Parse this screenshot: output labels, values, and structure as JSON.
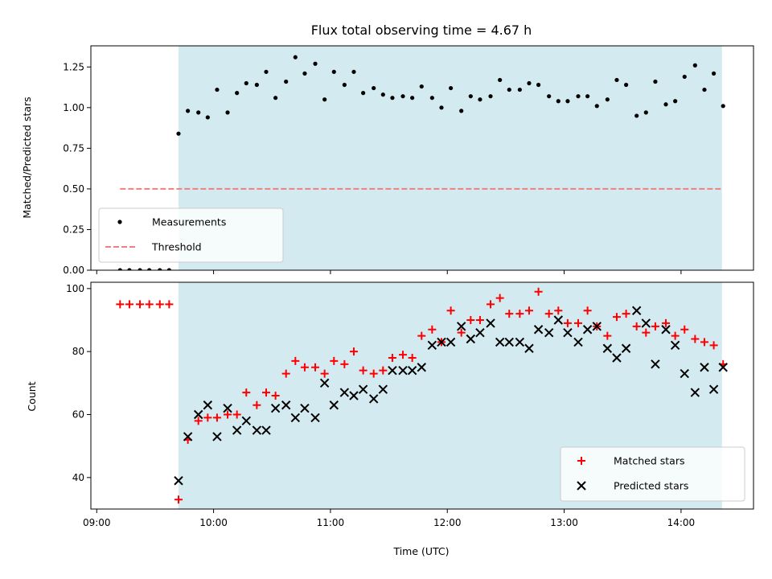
{
  "chart_data": [
    {
      "type": "scatter",
      "title": "Flux total observing time = 4.67 h",
      "ylabel": "Matched/Predicted stars",
      "ylim": [
        0,
        1.38
      ],
      "yticks": [
        "0.00",
        "0.25",
        "0.50",
        "0.75",
        "1.00",
        "1.25"
      ],
      "shaded_region": {
        "x_start": 9.7,
        "x_end": 14.35,
        "color": "#d3eaf0"
      },
      "legend": {
        "placement": "lower-left",
        "entries": [
          "Measurements",
          "Threshold"
        ]
      },
      "series": [
        {
          "name": "Measurements",
          "marker": "dot",
          "color": "#000000",
          "points": [
            [
              9.2,
              0
            ],
            [
              9.28,
              0
            ],
            [
              9.37,
              0
            ],
            [
              9.45,
              0
            ],
            [
              9.54,
              0
            ],
            [
              9.62,
              0
            ],
            [
              9.7,
              0.84
            ],
            [
              9.78,
              0.98
            ],
            [
              9.87,
              0.97
            ],
            [
              9.95,
              0.94
            ],
            [
              10.03,
              1.11
            ],
            [
              10.12,
              0.97
            ],
            [
              10.2,
              1.09
            ],
            [
              10.28,
              1.15
            ],
            [
              10.37,
              1.14
            ],
            [
              10.45,
              1.22
            ],
            [
              10.53,
              1.06
            ],
            [
              10.62,
              1.16
            ],
            [
              10.7,
              1.31
            ],
            [
              10.78,
              1.21
            ],
            [
              10.87,
              1.27
            ],
            [
              10.95,
              1.05
            ],
            [
              11.03,
              1.22
            ],
            [
              11.12,
              1.14
            ],
            [
              11.2,
              1.22
            ],
            [
              11.28,
              1.09
            ],
            [
              11.37,
              1.12
            ],
            [
              11.45,
              1.08
            ],
            [
              11.53,
              1.06
            ],
            [
              11.62,
              1.07
            ],
            [
              11.7,
              1.06
            ],
            [
              11.78,
              1.13
            ],
            [
              11.87,
              1.06
            ],
            [
              11.95,
              1.0
            ],
            [
              12.03,
              1.12
            ],
            [
              12.12,
              0.98
            ],
            [
              12.2,
              1.07
            ],
            [
              12.28,
              1.05
            ],
            [
              12.37,
              1.07
            ],
            [
              12.45,
              1.17
            ],
            [
              12.53,
              1.11
            ],
            [
              12.62,
              1.11
            ],
            [
              12.7,
              1.15
            ],
            [
              12.78,
              1.14
            ],
            [
              12.87,
              1.07
            ],
            [
              12.95,
              1.04
            ],
            [
              13.03,
              1.04
            ],
            [
              13.12,
              1.07
            ],
            [
              13.2,
              1.07
            ],
            [
              13.28,
              1.01
            ],
            [
              13.37,
              1.05
            ],
            [
              13.45,
              1.17
            ],
            [
              13.53,
              1.14
            ],
            [
              13.62,
              0.95
            ],
            [
              13.7,
              0.97
            ],
            [
              13.78,
              1.16
            ],
            [
              13.87,
              1.02
            ],
            [
              13.95,
              1.04
            ],
            [
              14.03,
              1.19
            ],
            [
              14.12,
              1.26
            ],
            [
              14.2,
              1.11
            ],
            [
              14.28,
              1.21
            ],
            [
              14.36,
              1.01
            ]
          ]
        },
        {
          "name": "Threshold",
          "marker": "dashed-line",
          "color": "#f08080",
          "points": [
            [
              9.2,
              0.5
            ],
            [
              14.36,
              0.5
            ]
          ]
        }
      ]
    },
    {
      "type": "scatter",
      "xlabel": "Time (UTC)",
      "ylabel": "Count",
      "xlim": [
        8.95,
        14.62
      ],
      "ylim": [
        30,
        102
      ],
      "xticks": [
        "09:00",
        "10:00",
        "11:00",
        "12:00",
        "13:00",
        "14:00"
      ],
      "yticks": [
        "40",
        "60",
        "80",
        "100"
      ],
      "shaded_region": {
        "x_start": 9.7,
        "x_end": 14.35,
        "color": "#d3eaf0"
      },
      "legend": {
        "placement": "lower-right",
        "entries": [
          "Matched stars",
          "Predicted stars"
        ]
      },
      "series": [
        {
          "name": "Matched stars",
          "marker": "plus",
          "color": "#ff0000",
          "points": [
            [
              9.2,
              95
            ],
            [
              9.28,
              95
            ],
            [
              9.37,
              95
            ],
            [
              9.45,
              95
            ],
            [
              9.54,
              95
            ],
            [
              9.62,
              95
            ],
            [
              9.7,
              33
            ],
            [
              9.78,
              52
            ],
            [
              9.87,
              58
            ],
            [
              9.95,
              59
            ],
            [
              10.03,
              59
            ],
            [
              10.12,
              60
            ],
            [
              10.2,
              60
            ],
            [
              10.28,
              67
            ],
            [
              10.37,
              63
            ],
            [
              10.45,
              67
            ],
            [
              10.53,
              66
            ],
            [
              10.62,
              73
            ],
            [
              10.7,
              77
            ],
            [
              10.78,
              75
            ],
            [
              10.87,
              75
            ],
            [
              10.95,
              73
            ],
            [
              11.03,
              77
            ],
            [
              11.12,
              76
            ],
            [
              11.2,
              80
            ],
            [
              11.28,
              74
            ],
            [
              11.37,
              73
            ],
            [
              11.45,
              74
            ],
            [
              11.53,
              78
            ],
            [
              11.62,
              79
            ],
            [
              11.7,
              78
            ],
            [
              11.78,
              85
            ],
            [
              11.87,
              87
            ],
            [
              11.95,
              83
            ],
            [
              12.03,
              93
            ],
            [
              12.12,
              86
            ],
            [
              12.2,
              90
            ],
            [
              12.28,
              90
            ],
            [
              12.37,
              95
            ],
            [
              12.45,
              97
            ],
            [
              12.53,
              92
            ],
            [
              12.62,
              92
            ],
            [
              12.7,
              93
            ],
            [
              12.78,
              99
            ],
            [
              12.87,
              92
            ],
            [
              12.95,
              93
            ],
            [
              13.03,
              89
            ],
            [
              13.12,
              89
            ],
            [
              13.2,
              93
            ],
            [
              13.28,
              88
            ],
            [
              13.37,
              85
            ],
            [
              13.45,
              91
            ],
            [
              13.53,
              92
            ],
            [
              13.62,
              88
            ],
            [
              13.7,
              86
            ],
            [
              13.78,
              88
            ],
            [
              13.87,
              89
            ],
            [
              13.95,
              85
            ],
            [
              14.03,
              87
            ],
            [
              14.12,
              84
            ],
            [
              14.2,
              83
            ],
            [
              14.28,
              82
            ],
            [
              14.36,
              76
            ]
          ]
        },
        {
          "name": "Predicted stars",
          "marker": "x",
          "color": "#000000",
          "points": [
            [
              9.7,
              39
            ],
            [
              9.78,
              53
            ],
            [
              9.87,
              60
            ],
            [
              9.95,
              63
            ],
            [
              10.03,
              53
            ],
            [
              10.12,
              62
            ],
            [
              10.2,
              55
            ],
            [
              10.28,
              58
            ],
            [
              10.37,
              55
            ],
            [
              10.45,
              55
            ],
            [
              10.53,
              62
            ],
            [
              10.62,
              63
            ],
            [
              10.7,
              59
            ],
            [
              10.78,
              62
            ],
            [
              10.87,
              59
            ],
            [
              10.95,
              70
            ],
            [
              11.03,
              63
            ],
            [
              11.12,
              67
            ],
            [
              11.2,
              66
            ],
            [
              11.28,
              68
            ],
            [
              11.37,
              65
            ],
            [
              11.45,
              68
            ],
            [
              11.53,
              74
            ],
            [
              11.62,
              74
            ],
            [
              11.7,
              74
            ],
            [
              11.78,
              75
            ],
            [
              11.87,
              82
            ],
            [
              11.95,
              83
            ],
            [
              12.03,
              83
            ],
            [
              12.12,
              88
            ],
            [
              12.2,
              84
            ],
            [
              12.28,
              86
            ],
            [
              12.37,
              89
            ],
            [
              12.45,
              83
            ],
            [
              12.53,
              83
            ],
            [
              12.62,
              83
            ],
            [
              12.7,
              81
            ],
            [
              12.78,
              87
            ],
            [
              12.87,
              86
            ],
            [
              12.95,
              90
            ],
            [
              13.03,
              86
            ],
            [
              13.12,
              83
            ],
            [
              13.2,
              87
            ],
            [
              13.28,
              88
            ],
            [
              13.37,
              81
            ],
            [
              13.45,
              78
            ],
            [
              13.53,
              81
            ],
            [
              13.62,
              93
            ],
            [
              13.7,
              89
            ],
            [
              13.78,
              76
            ],
            [
              13.87,
              87
            ],
            [
              13.95,
              82
            ],
            [
              14.03,
              73
            ],
            [
              14.12,
              67
            ],
            [
              14.2,
              75
            ],
            [
              14.28,
              68
            ],
            [
              14.36,
              75
            ]
          ]
        }
      ]
    }
  ]
}
